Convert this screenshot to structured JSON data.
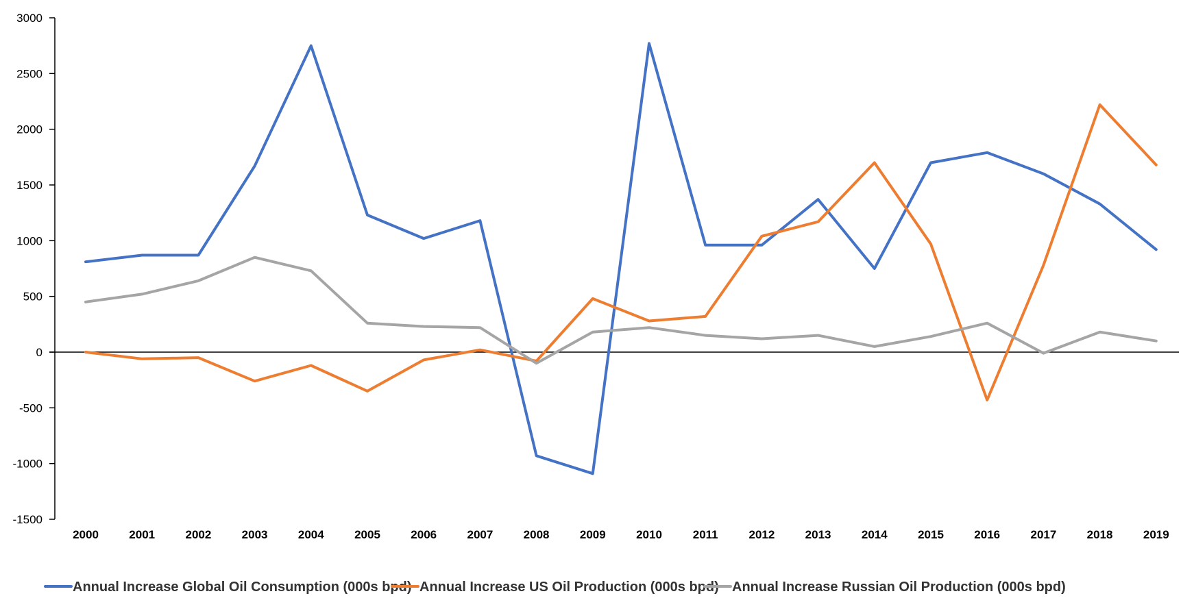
{
  "chart_data": {
    "type": "line",
    "title": "",
    "xlabel": "",
    "ylabel": "",
    "x": [
      2000,
      2001,
      2002,
      2003,
      2004,
      2005,
      2006,
      2007,
      2008,
      2009,
      2010,
      2011,
      2012,
      2013,
      2014,
      2015,
      2016,
      2017,
      2018,
      2019
    ],
    "ylim": [
      -1500,
      3000
    ],
    "yticks": [
      3000,
      2500,
      2000,
      1500,
      1000,
      500,
      0,
      -500,
      -1000,
      -1500
    ],
    "grid": false,
    "legend_position": "bottom",
    "series": [
      {
        "name": "Annual Increase Global Oil Consumption (000s bpd)",
        "color": "#4472C4",
        "values": [
          810,
          870,
          870,
          1670,
          2750,
          1230,
          1020,
          1180,
          -930,
          -1090,
          2770,
          960,
          960,
          1370,
          750,
          1700,
          1790,
          1600,
          1330,
          920
        ]
      },
      {
        "name": "Annual Increase US Oil Production (000s bpd)",
        "color": "#ED7D31",
        "values": [
          0,
          -60,
          -50,
          -260,
          -120,
          -350,
          -70,
          20,
          -80,
          480,
          280,
          320,
          1040,
          1170,
          1700,
          970,
          -430,
          780,
          2220,
          1680
        ]
      },
      {
        "name": "Annual Increase Russian Oil Production (000s bpd)",
        "color": "#A5A5A5",
        "values": [
          450,
          520,
          640,
          850,
          730,
          260,
          230,
          220,
          -100,
          180,
          220,
          150,
          120,
          150,
          50,
          140,
          260,
          -10,
          180,
          100
        ]
      }
    ]
  }
}
